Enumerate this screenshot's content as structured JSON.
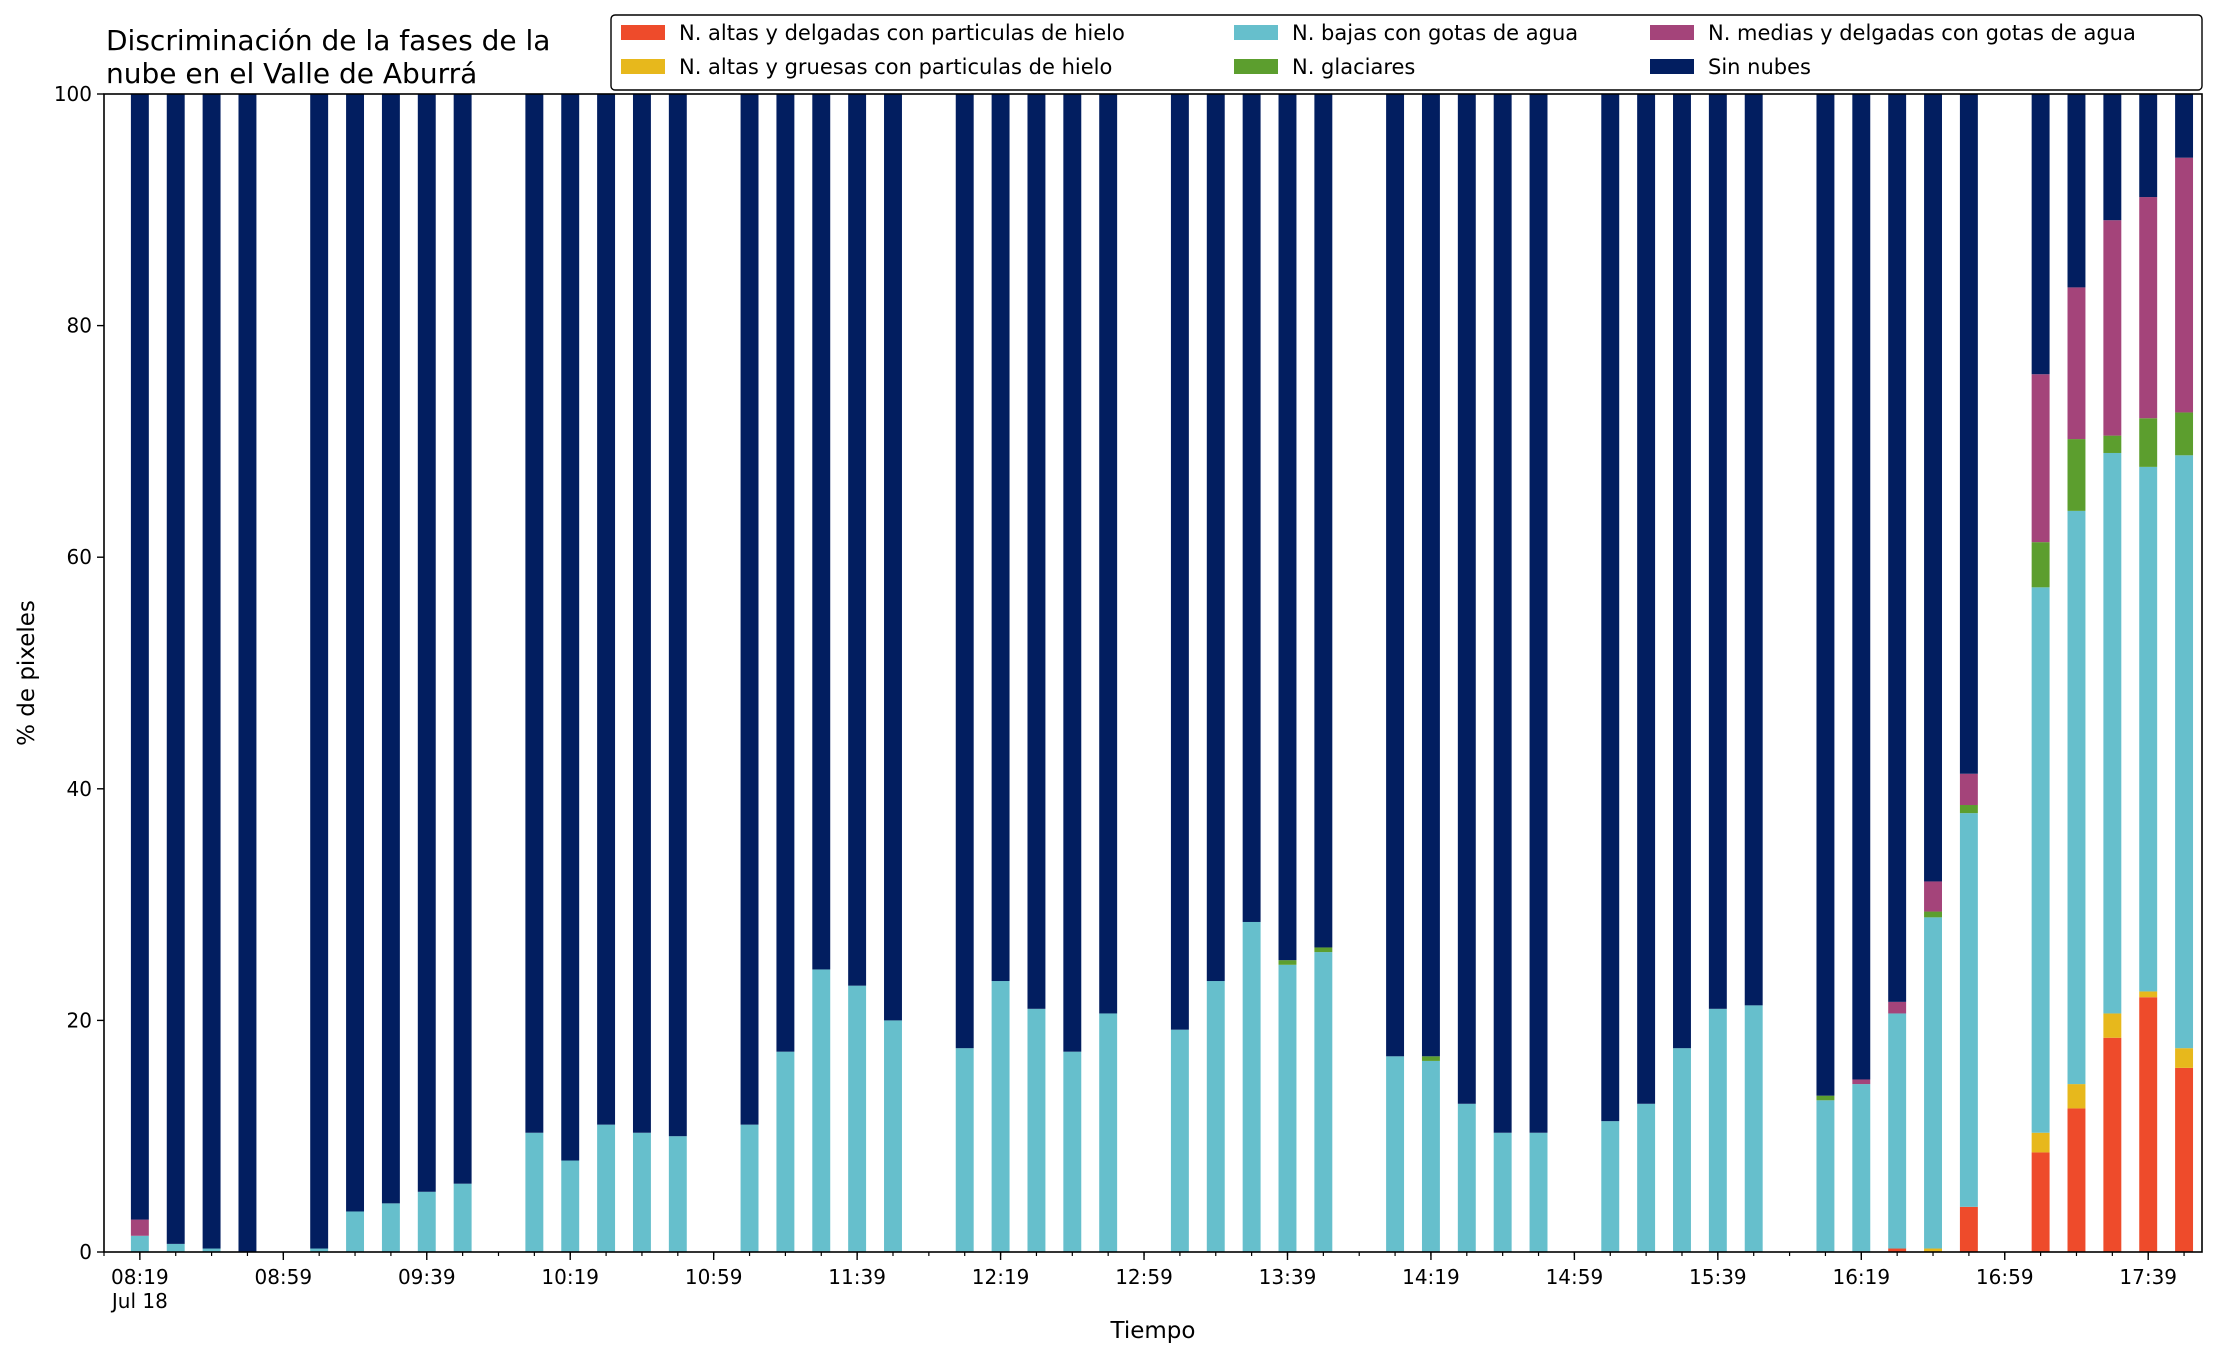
{
  "chart_data": {
    "type": "bar",
    "stacked": true,
    "title_lines": [
      "Discriminación de la fases de la",
      "nube en el Valle de Aburrá"
    ],
    "xlabel": "Tiempo",
    "ylabel": "% de pixeles",
    "ylim": [
      0,
      100
    ],
    "yticks": [
      0,
      20,
      40,
      60,
      80,
      100
    ],
    "xaxis_start": "08:09",
    "xaxis_end": "17:54",
    "bar_interval_minutes": 10,
    "bar_width_minutes": 5,
    "minor_tick_minutes": 10,
    "xticks": [
      {
        "time": "08:19",
        "label": "08:19",
        "sublabel": "Jul 18"
      },
      {
        "time": "08:59",
        "label": "08:59"
      },
      {
        "time": "09:39",
        "label": "09:39"
      },
      {
        "time": "10:19",
        "label": "10:19"
      },
      {
        "time": "10:59",
        "label": "10:59"
      },
      {
        "time": "11:39",
        "label": "11:39"
      },
      {
        "time": "12:19",
        "label": "12:19"
      },
      {
        "time": "12:59",
        "label": "12:59"
      },
      {
        "time": "13:39",
        "label": "13:39"
      },
      {
        "time": "14:19",
        "label": "14:19"
      },
      {
        "time": "14:59",
        "label": "14:59"
      },
      {
        "time": "15:39",
        "label": "15:39"
      },
      {
        "time": "16:19",
        "label": "16:19"
      },
      {
        "time": "16:59",
        "label": "16:59"
      },
      {
        "time": "17:39",
        "label": "17:39"
      }
    ],
    "legend_position": "top-right",
    "series": [
      {
        "key": "altas_delgadas",
        "name": "N. altas y delgadas con particulas de hielo",
        "color": "#ee4b2b"
      },
      {
        "key": "altas_gruesas",
        "name": "N. altas y gruesas con particulas de hielo",
        "color": "#e7b81c"
      },
      {
        "key": "bajas",
        "name": "N. bajas con gotas de agua",
        "color": "#66bfcc"
      },
      {
        "key": "glaciares",
        "name": "N. glaciares",
        "color": "#5c9e2e"
      },
      {
        "key": "medias",
        "name": "N. medias y delgadas con gotas de agua",
        "color": "#a4447a"
      },
      {
        "key": "sin_nubes",
        "name": "Sin nubes",
        "color": "#021e60"
      }
    ],
    "stack_order": [
      "altas_delgadas",
      "altas_gruesas",
      "bajas",
      "glaciares",
      "medias",
      "sin_nubes"
    ],
    "bars": [
      {
        "time": "08:19",
        "values": [
          0,
          0,
          1.4,
          0,
          1.4,
          97.2
        ]
      },
      {
        "time": "08:29",
        "values": [
          0,
          0,
          0.7,
          0,
          0,
          99.3
        ]
      },
      {
        "time": "08:39",
        "values": [
          0,
          0,
          0.3,
          0,
          0,
          99.7
        ]
      },
      {
        "time": "08:49",
        "values": [
          0,
          0,
          0,
          0,
          0,
          100
        ]
      },
      {
        "time": "09:09",
        "values": [
          0,
          0,
          0.3,
          0,
          0,
          99.7
        ]
      },
      {
        "time": "09:19",
        "values": [
          0,
          0,
          3.5,
          0,
          0,
          96.5
        ]
      },
      {
        "time": "09:29",
        "values": [
          0,
          0,
          4.2,
          0,
          0,
          95.8
        ]
      },
      {
        "time": "09:39",
        "values": [
          0,
          0,
          5.2,
          0,
          0,
          94.8
        ]
      },
      {
        "time": "09:49",
        "values": [
          0,
          0,
          5.9,
          0,
          0,
          94.1
        ]
      },
      {
        "time": "10:09",
        "values": [
          0,
          0,
          10.3,
          0,
          0,
          89.7
        ]
      },
      {
        "time": "10:19",
        "values": [
          0,
          0,
          7.9,
          0,
          0,
          92.1
        ]
      },
      {
        "time": "10:29",
        "values": [
          0,
          0,
          11.0,
          0,
          0,
          89.0
        ]
      },
      {
        "time": "10:39",
        "values": [
          0,
          0,
          10.3,
          0,
          0,
          89.7
        ]
      },
      {
        "time": "10:49",
        "values": [
          0,
          0,
          10.0,
          0,
          0,
          90.0
        ]
      },
      {
        "time": "11:09",
        "values": [
          0,
          0,
          11.0,
          0,
          0,
          89.0
        ]
      },
      {
        "time": "11:19",
        "values": [
          0,
          0,
          17.3,
          0,
          0,
          82.7
        ]
      },
      {
        "time": "11:29",
        "values": [
          0,
          0,
          24.4,
          0,
          0,
          75.6
        ]
      },
      {
        "time": "11:39",
        "values": [
          0,
          0,
          23.0,
          0,
          0,
          77.0
        ]
      },
      {
        "time": "11:49",
        "values": [
          0,
          0,
          20.0,
          0,
          0,
          80.0
        ]
      },
      {
        "time": "12:09",
        "values": [
          0,
          0,
          17.6,
          0,
          0,
          82.4
        ]
      },
      {
        "time": "12:19",
        "values": [
          0,
          0,
          23.4,
          0,
          0,
          76.6
        ]
      },
      {
        "time": "12:29",
        "values": [
          0,
          0,
          21.0,
          0,
          0,
          79.0
        ]
      },
      {
        "time": "12:39",
        "values": [
          0,
          0,
          17.3,
          0,
          0,
          82.7
        ]
      },
      {
        "time": "12:49",
        "values": [
          0,
          0,
          20.6,
          0,
          0,
          79.4
        ]
      },
      {
        "time": "13:09",
        "values": [
          0,
          0,
          19.2,
          0,
          0,
          80.8
        ]
      },
      {
        "time": "13:19",
        "values": [
          0,
          0,
          23.4,
          0,
          0,
          76.6
        ]
      },
      {
        "time": "13:29",
        "values": [
          0,
          0,
          28.5,
          0,
          0,
          71.5
        ]
      },
      {
        "time": "13:39",
        "values": [
          0,
          0,
          24.8,
          0.4,
          0,
          74.8
        ]
      },
      {
        "time": "13:49",
        "values": [
          0,
          0,
          25.9,
          0.4,
          0,
          73.7
        ]
      },
      {
        "time": "14:09",
        "values": [
          0,
          0,
          16.9,
          0,
          0,
          83.1
        ]
      },
      {
        "time": "14:19",
        "values": [
          0,
          0,
          16.5,
          0.4,
          0,
          83.1
        ]
      },
      {
        "time": "14:29",
        "values": [
          0,
          0,
          12.8,
          0,
          0,
          87.2
        ]
      },
      {
        "time": "14:39",
        "values": [
          0,
          0,
          10.3,
          0,
          0,
          89.7
        ]
      },
      {
        "time": "14:49",
        "values": [
          0,
          0,
          10.3,
          0,
          0,
          89.7
        ]
      },
      {
        "time": "15:09",
        "values": [
          0,
          0,
          11.3,
          0,
          0,
          88.7
        ]
      },
      {
        "time": "15:19",
        "values": [
          0,
          0,
          12.8,
          0,
          0,
          87.2
        ]
      },
      {
        "time": "15:29",
        "values": [
          0,
          0,
          17.6,
          0,
          0,
          82.4
        ]
      },
      {
        "time": "15:39",
        "values": [
          0,
          0,
          21.0,
          0,
          0,
          79.0
        ]
      },
      {
        "time": "15:49",
        "values": [
          0,
          0,
          21.3,
          0,
          0,
          78.7
        ]
      },
      {
        "time": "16:09",
        "values": [
          0,
          0,
          13.1,
          0.4,
          0,
          86.5
        ]
      },
      {
        "time": "16:19",
        "values": [
          0,
          0,
          14.5,
          0,
          0.4,
          85.1
        ]
      },
      {
        "time": "16:29",
        "values": [
          0.3,
          0,
          20.3,
          0,
          1.0,
          78.4
        ]
      },
      {
        "time": "16:39",
        "values": [
          0,
          0.3,
          28.6,
          0.5,
          2.6,
          68.0
        ]
      },
      {
        "time": "16:49",
        "values": [
          3.9,
          0,
          34.0,
          0.7,
          2.7,
          58.7
        ]
      },
      {
        "time": "17:09",
        "values": [
          8.6,
          1.7,
          47.1,
          3.9,
          14.5,
          24.2
        ]
      },
      {
        "time": "17:19",
        "values": [
          12.4,
          2.1,
          49.5,
          6.2,
          13.1,
          16.7
        ]
      },
      {
        "time": "17:29",
        "values": [
          18.5,
          2.1,
          48.4,
          1.5,
          18.6,
          10.9
        ]
      },
      {
        "time": "17:39",
        "values": [
          22.0,
          0.5,
          45.3,
          4.2,
          19.1,
          8.9
        ]
      },
      {
        "time": "17:49",
        "values": [
          15.9,
          1.7,
          51.2,
          3.7,
          22.0,
          5.5
        ]
      }
    ]
  }
}
